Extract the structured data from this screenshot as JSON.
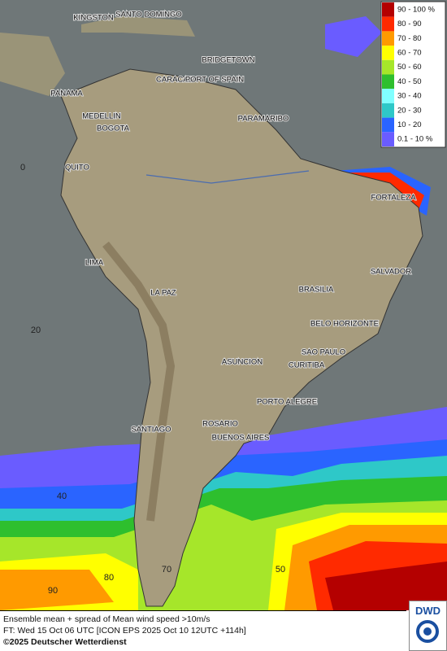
{
  "map": {
    "legend": [
      {
        "label": "90 - 100 %",
        "color": "#b40000"
      },
      {
        "label": "80 - 90",
        "color": "#ff2a00"
      },
      {
        "label": "70 - 80",
        "color": "#ff9a00"
      },
      {
        "label": "60 - 70",
        "color": "#ffff00"
      },
      {
        "label": "50 - 60",
        "color": "#a6e62a"
      },
      {
        "label": "40 - 50",
        "color": "#2ebf2e"
      },
      {
        "label": "30 - 40",
        "color": "#80ffff"
      },
      {
        "label": "20 - 30",
        "color": "#2ec8c8"
      },
      {
        "label": "10 - 20",
        "color": "#2a64ff"
      },
      {
        "label": "0.1 - 10 %",
        "color": "#6a5cff"
      }
    ],
    "cities": [
      "KINGSTON",
      "SANTO DOMINGO",
      "BRIDGETOWN",
      "CARACAS",
      "PORT OF SPAIN",
      "PANAMA",
      "MEDELLIN",
      "BOGOTA",
      "PARAMARIBO",
      "QUITO",
      "FORTALEZA",
      "LIMA",
      "SALVADOR",
      "BRASILIA",
      "LA PAZ",
      "BELO HORIZONTE",
      "SAO PAULO",
      "ASUNCION",
      "CURITIBA",
      "PORTO ALEGRE",
      "ROSARIO",
      "BUENOS AIRES",
      "SANTIAGO"
    ],
    "grid_labels": [
      "0",
      "20",
      "40",
      "90",
      "80",
      "70",
      "50"
    ]
  },
  "footer": {
    "line1": "Ensemble mean + spread of Mean wind speed >10m/s",
    "line2": "FT: Wed 15 Oct 06 UTC [ICON EPS 2025 Oct 10 12UTC +114h]",
    "copyright": "©2025 Deutscher Wetterdienst"
  },
  "logo": "DWD"
}
